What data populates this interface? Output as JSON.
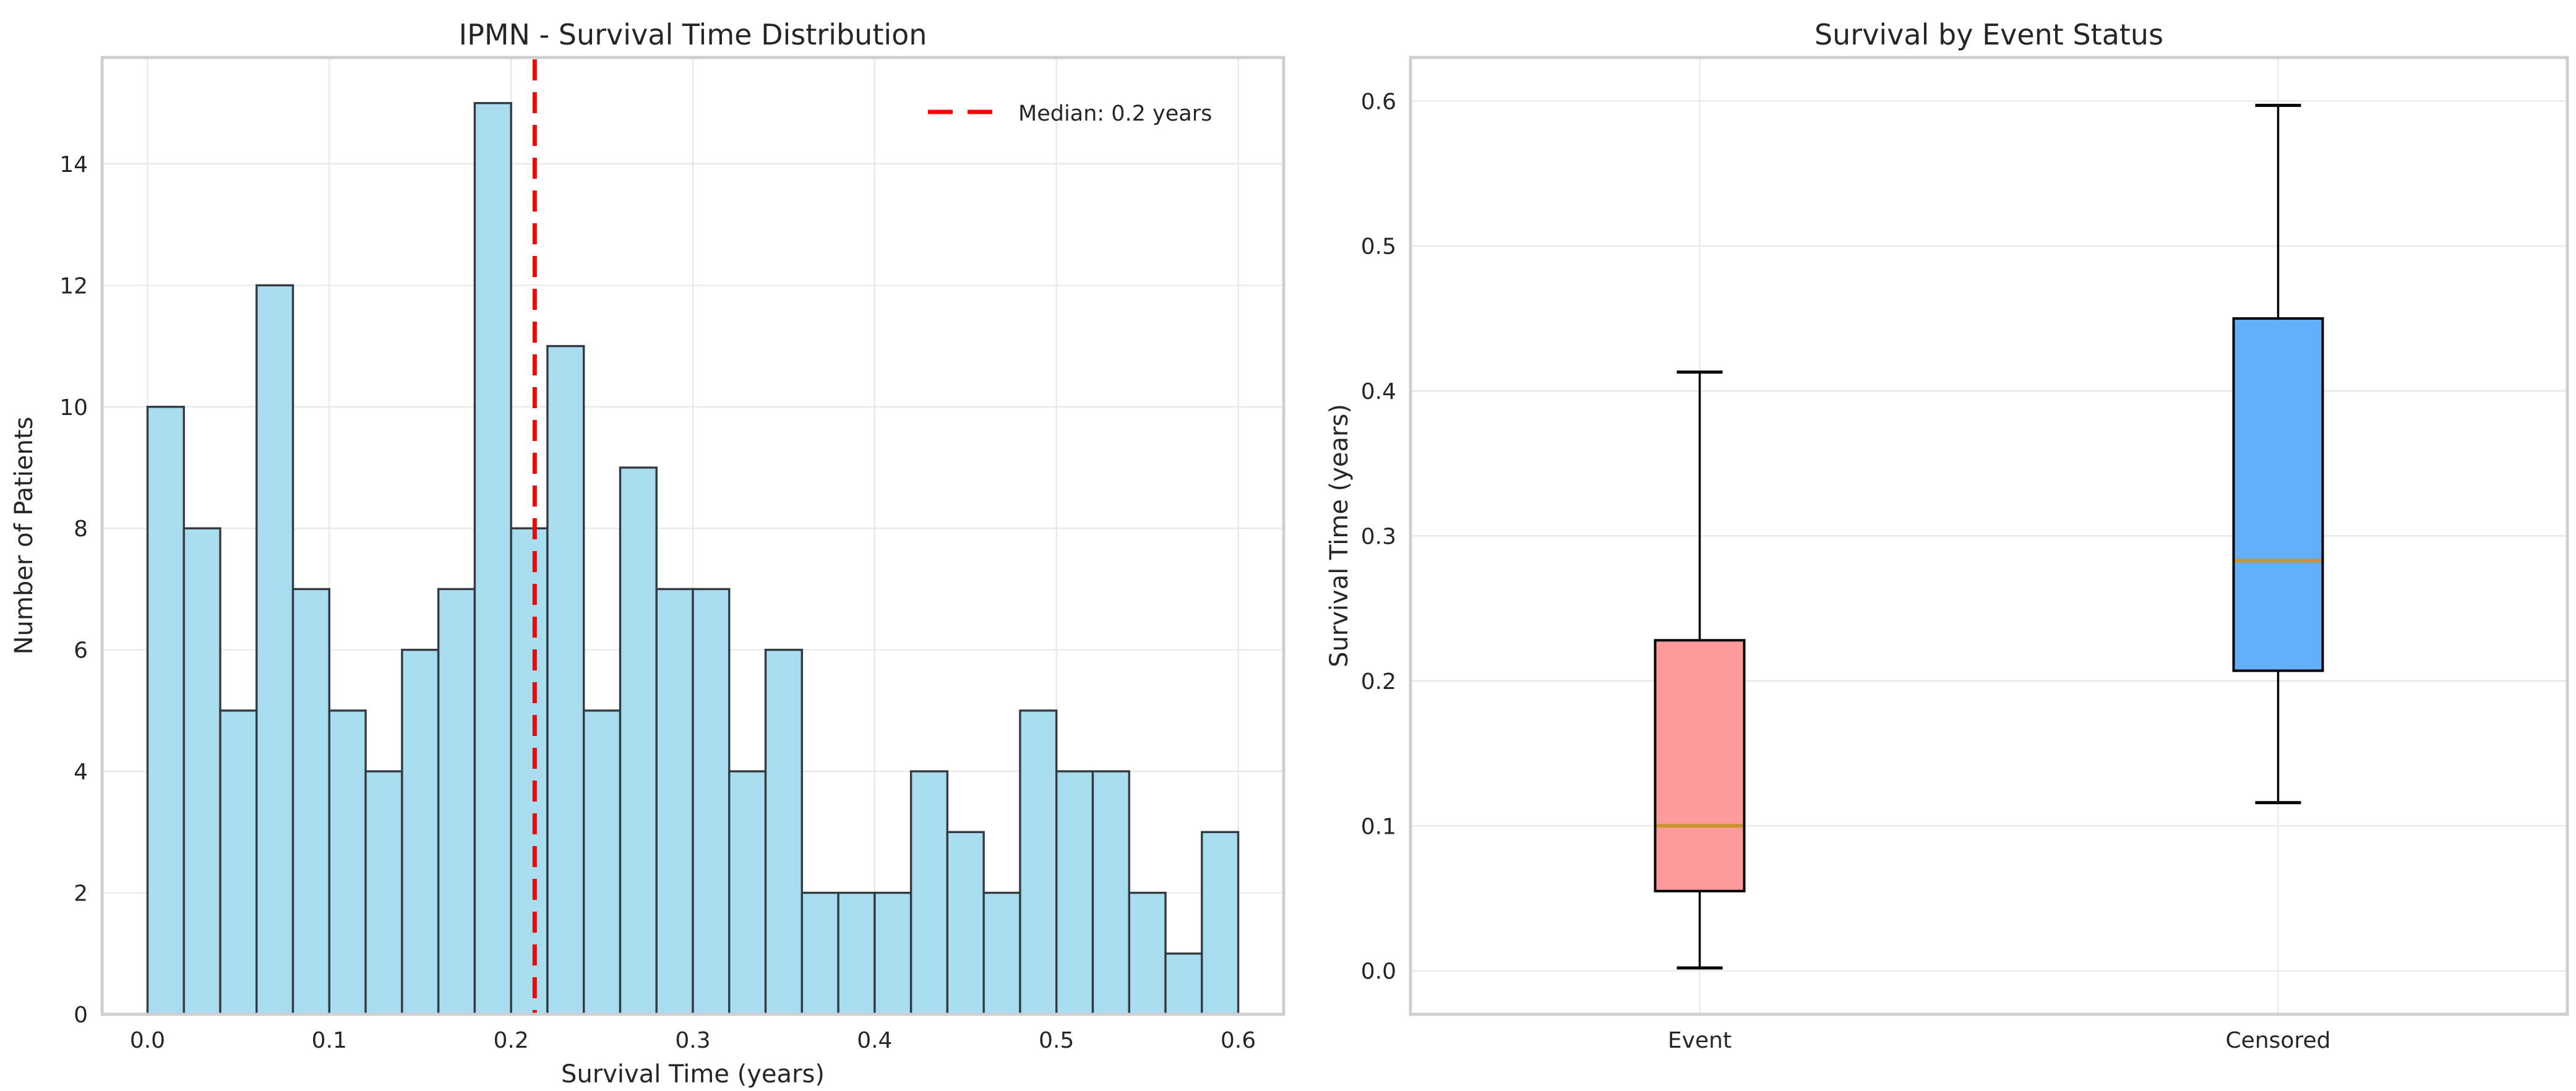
{
  "page": {
    "background": "#ffffff",
    "text_color": "#262626",
    "grid_color": "#e8e8e8",
    "spine_color": "#cfcfcf"
  },
  "chart_data": [
    {
      "type": "bar",
      "subtype": "histogram",
      "title": "IPMN - Survival Time Distribution",
      "xlabel": "Survival Time (years)",
      "ylabel": "Number of Patients",
      "bin_start": 0.0,
      "bin_width": 0.02,
      "counts": [
        10,
        8,
        5,
        12,
        7,
        5,
        4,
        6,
        7,
        15,
        8,
        11,
        5,
        9,
        7,
        7,
        4,
        6,
        2,
        2,
        2,
        4,
        3,
        2,
        5,
        4,
        4,
        2,
        1,
        3
      ],
      "bar_fill": "#a9dcee",
      "bar_edge": "#333b42",
      "median_line": {
        "value": 0.213,
        "color": "#ff0000",
        "style": "dashed"
      },
      "legend": {
        "label": "Median: 0.2 years",
        "position": "upper right",
        "frame": false
      },
      "xticks": {
        "values": [
          0.0,
          0.1,
          0.2,
          0.3,
          0.4,
          0.5,
          0.6
        ],
        "labels": [
          "0.0",
          "0.1",
          "0.2",
          "0.3",
          "0.4",
          "0.5",
          "0.6"
        ]
      },
      "yticks": {
        "values": [
          0,
          2,
          4,
          6,
          8,
          10,
          12,
          14
        ],
        "labels": [
          "0",
          "2",
          "4",
          "6",
          "8",
          "10",
          "12",
          "14"
        ]
      },
      "xlim": [
        -0.025,
        0.625
      ],
      "ylim": [
        0,
        15.75
      ],
      "grid": true
    },
    {
      "type": "boxplot",
      "title": "Survival by Event Status",
      "xlabel": "",
      "ylabel": "Survival Time (years)",
      "categories": [
        "Event",
        "Censored"
      ],
      "series": [
        {
          "name": "Event",
          "whisker_low": 0.002,
          "q1": 0.055,
          "median": 0.1,
          "q3": 0.228,
          "whisker_high": 0.413,
          "fill": "#fc9a9a"
        },
        {
          "name": "Censored",
          "whisker_low": 0.116,
          "q1": 0.207,
          "median": 0.283,
          "q3": 0.45,
          "whisker_high": 0.597,
          "fill": "#64affc"
        }
      ],
      "box_edge": "#000000",
      "median_color": "#c8942d",
      "yticks": {
        "values": [
          0.0,
          0.1,
          0.2,
          0.3,
          0.4,
          0.5,
          0.6
        ],
        "labels": [
          "0.0",
          "0.1",
          "0.2",
          "0.3",
          "0.4",
          "0.5",
          "0.6"
        ]
      },
      "ylim": [
        -0.03,
        0.63
      ],
      "grid": true
    }
  ]
}
